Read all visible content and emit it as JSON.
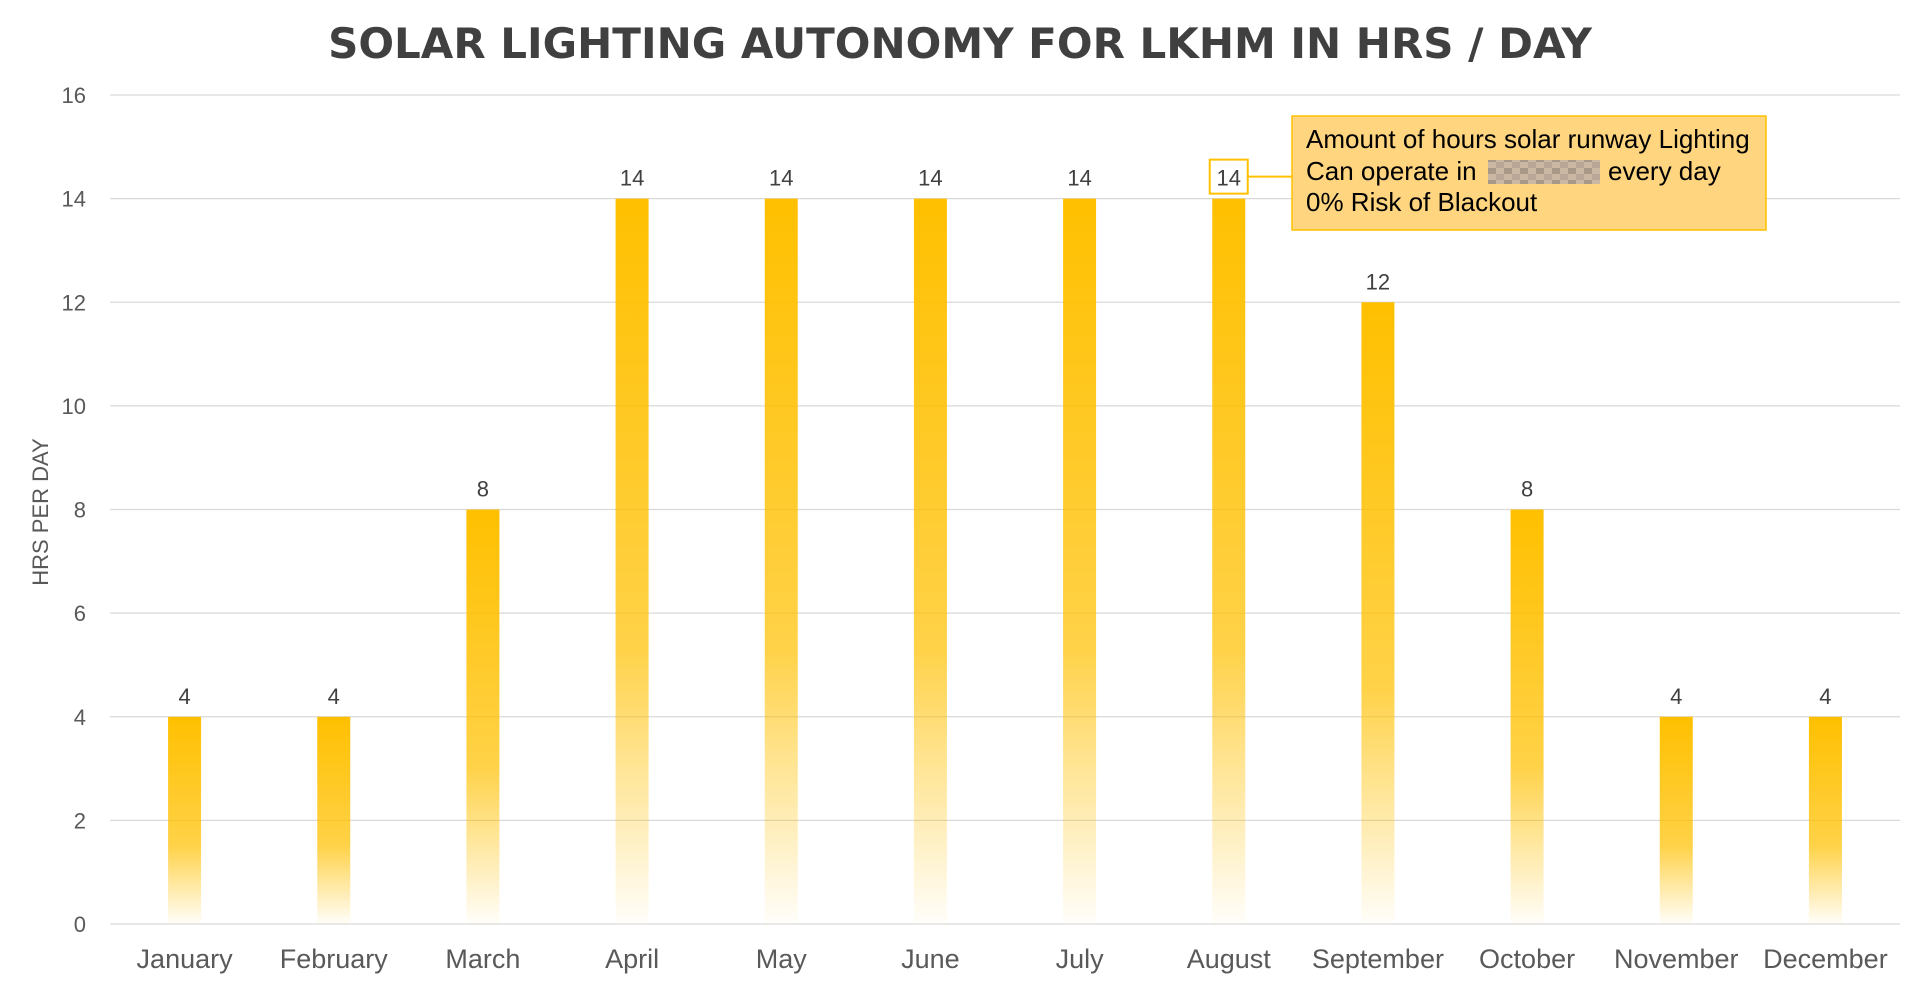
{
  "chart_data": {
    "type": "bar",
    "title": "SOLAR LIGHTING AUTONOMY FOR LKHM IN HRS / DAY",
    "xlabel": "",
    "ylabel": "HRS PER DAY",
    "categories": [
      "January",
      "February",
      "March",
      "April",
      "May",
      "June",
      "July",
      "August",
      "September",
      "October",
      "November",
      "December"
    ],
    "values": [
      4,
      4,
      8,
      14,
      14,
      14,
      14,
      14,
      12,
      8,
      4,
      4
    ],
    "ylim": [
      0,
      16
    ],
    "yticks": [
      0,
      2,
      4,
      6,
      8,
      10,
      12,
      14,
      16
    ],
    "grid": true,
    "legend": "none",
    "bar_color": "#FFC000",
    "highlighted_category": "August",
    "annotation": {
      "line1": "Amount of hours solar runway Lighting",
      "line2_prefix": "Can operate in",
      "line2_suffix": "every day",
      "line3": "0% Risk of Blackout",
      "fill_color": "#FFD580",
      "border_color": "#FFC000"
    }
  }
}
